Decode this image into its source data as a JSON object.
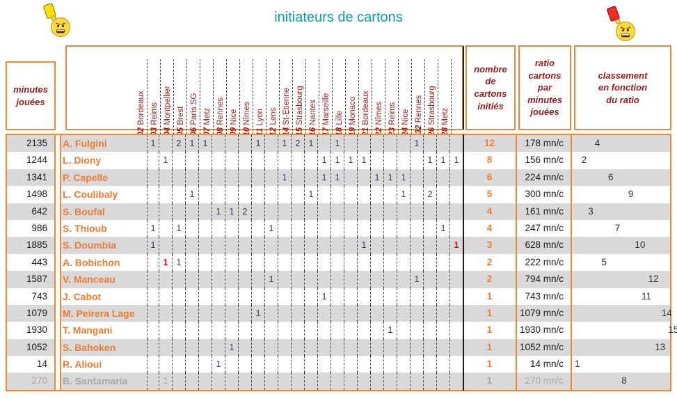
{
  "title": "initiateurs de cartons",
  "icons": {
    "left": "yellow-card-smiley",
    "right": "red-card-smiley"
  },
  "headers": {
    "minutes": "minutes\njouées",
    "nombre": "nombre\nde\ncartons\ninitiés",
    "ratio": "ratio\ncartons\npar\nminutes\njouées",
    "classement": "classement\nen fonction\ndu ratio"
  },
  "match_columns": [
    {
      "day": "J02",
      "club": "Bordeaux"
    },
    {
      "day": "J03",
      "club": "Reims"
    },
    {
      "day": "J04",
      "club": "Montpellier"
    },
    {
      "day": "J05",
      "club": "Brest"
    },
    {
      "day": "J06",
      "club": "Paris SG"
    },
    {
      "day": "J07",
      "club": "Metz"
    },
    {
      "day": "J08",
      "club": "Rennes"
    },
    {
      "day": "J09",
      "club": "Nice"
    },
    {
      "day": "J10",
      "club": "Nîmes"
    },
    {
      "day": "J11",
      "club": "Lyon"
    },
    {
      "day": "J12",
      "club": "Lens"
    },
    {
      "day": "J14",
      "club": "St-Etienne"
    },
    {
      "day": "J15",
      "club": "Strasbourg"
    },
    {
      "day": "J16",
      "club": "Nantes"
    },
    {
      "day": "J17",
      "club": "Marseille"
    },
    {
      "day": "J18",
      "club": "Lille"
    },
    {
      "day": "J19",
      "club": "Monaco"
    },
    {
      "day": "J21",
      "club": "Bordeaux"
    },
    {
      "day": "J22",
      "club": "Nîmes"
    },
    {
      "day": "J23",
      "club": "Reims"
    },
    {
      "day": "J24",
      "club": "Nice"
    },
    {
      "day": "1/32",
      "club": "Rennes"
    },
    {
      "day": "J26",
      "club": "Strasbourg"
    },
    {
      "day": "J28",
      "club": "Metz"
    }
  ],
  "players": [
    {
      "minutes": "2135",
      "name": "A. Fulgini",
      "cards": [
        {
          "col": "J02",
          "n": "1"
        },
        {
          "col": "J04",
          "n": "2"
        },
        {
          "col": "J05",
          "n": "1"
        },
        {
          "col": "J06",
          "n": "1"
        },
        {
          "col": "J10",
          "n": "1"
        },
        {
          "col": "J12",
          "n": "1"
        },
        {
          "col": "J14",
          "n": "2"
        },
        {
          "col": "J15",
          "n": "1"
        },
        {
          "col": "J17",
          "n": "1"
        },
        {
          "col": "J24",
          "n": "1"
        }
      ],
      "nombre": "12",
      "ratio": "178 mn/c",
      "rank": 4
    },
    {
      "minutes": "1244",
      "name": "L. Diony",
      "cards": [
        {
          "col": "J03",
          "n": "1"
        },
        {
          "col": "J16",
          "n": "1"
        },
        {
          "col": "J17",
          "n": "1"
        },
        {
          "col": "J18",
          "n": "1"
        },
        {
          "col": "J19",
          "n": "1"
        },
        {
          "col": "1/32",
          "n": "1"
        },
        {
          "col": "J26",
          "n": "1"
        },
        {
          "col": "J28",
          "n": "1"
        }
      ],
      "nombre": "8",
      "ratio": "156 mn/c",
      "rank": 2
    },
    {
      "minutes": "1341",
      "name": "P. Capelle",
      "cards": [
        {
          "col": "J12",
          "n": "1"
        },
        {
          "col": "J16",
          "n": "1"
        },
        {
          "col": "J17",
          "n": "1"
        },
        {
          "col": "J21",
          "n": "1"
        },
        {
          "col": "J22",
          "n": "1"
        },
        {
          "col": "J23",
          "n": "1"
        }
      ],
      "nombre": "6",
      "ratio": "224 mn/c",
      "rank": 6
    },
    {
      "minutes": "1498",
      "name": "L. Coulibaly",
      "cards": [
        {
          "col": "J05",
          "n": "1"
        },
        {
          "col": "J15",
          "n": "1"
        },
        {
          "col": "J23",
          "n": "1"
        },
        {
          "col": "1/32",
          "n": "2"
        }
      ],
      "nombre": "5",
      "ratio": "300 mn/c",
      "rank": 9
    },
    {
      "minutes": "642",
      "name": "S. Boufal",
      "cards": [
        {
          "col": "J07",
          "n": "1"
        },
        {
          "col": "J08",
          "n": "1"
        },
        {
          "col": "J09",
          "n": "2"
        }
      ],
      "nombre": "4",
      "ratio": "161 mn/c",
      "rank": 3
    },
    {
      "minutes": "986",
      "name": "S. Thioub",
      "cards": [
        {
          "col": "J02",
          "n": "1"
        },
        {
          "col": "J04",
          "n": "1"
        },
        {
          "col": "J11",
          "n": "1"
        },
        {
          "col": "J26",
          "n": "1"
        }
      ],
      "nombre": "4",
      "ratio": "247 mn/c",
      "rank": 7
    },
    {
      "minutes": "1885",
      "name": "S. Doumbia",
      "cards": [
        {
          "col": "J02",
          "n": "1"
        },
        {
          "col": "J19",
          "n": "1"
        },
        {
          "col": "J28",
          "n": "1",
          "red": true
        }
      ],
      "nombre": "3",
      "ratio": "628 mn/c",
      "rank": 10
    },
    {
      "minutes": "443",
      "name": "A. Bobichon",
      "cards": [
        {
          "col": "J03",
          "n": "1",
          "red": true
        },
        {
          "col": "J04",
          "n": "1"
        }
      ],
      "nombre": "2",
      "ratio": "222 mn/c",
      "rank": 5
    },
    {
      "minutes": "1587",
      "name": "V. Manceau",
      "cards": [
        {
          "col": "J11",
          "n": "1"
        },
        {
          "col": "J24",
          "n": "1"
        }
      ],
      "nombre": "2",
      "ratio": "794 mn/c",
      "rank": 12
    },
    {
      "minutes": "743",
      "name": "J. Cabot",
      "cards": [
        {
          "col": "J16",
          "n": "1"
        }
      ],
      "nombre": "1",
      "ratio": "743 mn/c",
      "rank": 11
    },
    {
      "minutes": "1079",
      "name": "M. Peirera Lage",
      "cards": [
        {
          "col": "J10",
          "n": "1"
        }
      ],
      "nombre": "1",
      "ratio": "1079 mn/c",
      "rank": 14
    },
    {
      "minutes": "1930",
      "name": "T. Mangani",
      "cards": [
        {
          "col": "J22",
          "n": "1"
        }
      ],
      "nombre": "1",
      "ratio": "1930 mn/c",
      "rank": 15
    },
    {
      "minutes": "1052",
      "name": "S. Bahoken",
      "cards": [
        {
          "col": "J08",
          "n": "1"
        }
      ],
      "nombre": "1",
      "ratio": "1052 mn/c",
      "rank": 13
    },
    {
      "minutes": "14",
      "name": "R. Alioui",
      "cards": [
        {
          "col": "J07",
          "n": "1"
        }
      ],
      "nombre": "1",
      "ratio": "14 mn/c",
      "rank": 1
    },
    {
      "minutes": "270",
      "name": "B. Santamaria",
      "cards": [
        {
          "col": "J03",
          "n": "1"
        }
      ],
      "nombre": "1",
      "ratio": "270 mn/c",
      "rank": 8,
      "grayed": true
    }
  ],
  "colors": {
    "accent_orange": "#E78A3C",
    "maroon": "#9C1A1A",
    "name_orange": "#ED7D31",
    "band_gray": "#D9D9D9",
    "digit_navy": "#2E3A5C",
    "card_red": "#FF0000",
    "muted_gray": "#A8A8A8",
    "title_teal": "#0D9B9B"
  }
}
